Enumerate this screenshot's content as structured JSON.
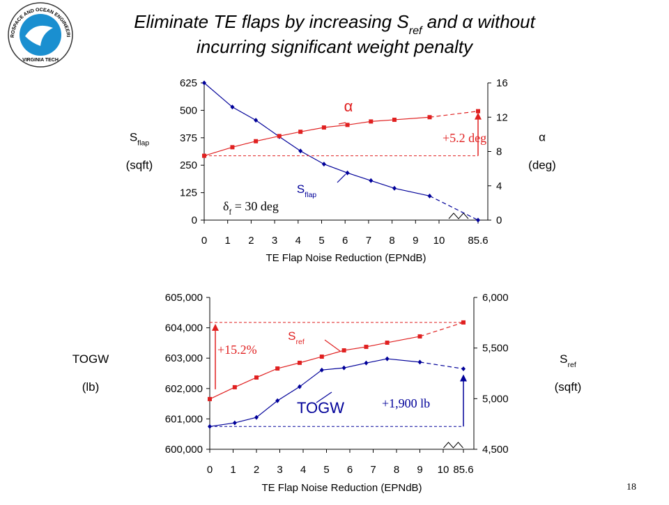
{
  "slide": {
    "title_lines": [
      [
        {
          "text": "Eliminate TE flaps by increasing S"
        },
        {
          "text": "ref",
          "sub": true
        },
        {
          "text": " and "
        },
        {
          "text": "α"
        },
        {
          "text": " without"
        }
      ],
      [
        {
          "text": "incurring significant weight penalty"
        }
      ]
    ],
    "logo_text": [
      "AEROSPACE AND OCEAN ENGINEERING",
      "VIRGINIA TECH"
    ],
    "page_number": "18"
  },
  "chart_data": [
    {
      "type": "line",
      "x_label": "TE Flap Noise Reduction (EPNdB)",
      "y_label": {
        "text": "S",
        "sub": "flap",
        "unit": "(sqft)"
      },
      "y2_label": {
        "text": "α",
        "unit": "(deg)"
      },
      "xticks": [
        0,
        1,
        2,
        3,
        4,
        5,
        6,
        7,
        8,
        9,
        10,
        85.6
      ],
      "ylim": [
        0,
        625
      ],
      "yticks": [
        0,
        125,
        250,
        375,
        500,
        625
      ],
      "y2lim": [
        0,
        16
      ],
      "y2ticks": [
        0,
        4,
        8,
        12,
        16
      ],
      "axis_break": true,
      "series": [
        {
          "name": "S",
          "name_sub": "flap",
          "color": "#000099",
          "x": [
            0,
            1.2,
            2.2,
            3.2,
            4.1,
            5.1,
            6.1,
            7.1,
            8.1,
            9.6,
            85.6
          ],
          "values": [
            625,
            515,
            455,
            380,
            315,
            255,
            215,
            180,
            145,
            110,
            0
          ]
        },
        {
          "name": "α",
          "axis": "y2",
          "color": "#e02020",
          "x": [
            0,
            1.2,
            2.2,
            3.2,
            4.1,
            5.1,
            6.1,
            7.1,
            8.1,
            9.6,
            85.6
          ],
          "values": [
            7.5,
            8.5,
            9.2,
            9.8,
            10.3,
            10.8,
            11.1,
            11.5,
            11.7,
            12.0,
            12.7
          ]
        }
      ],
      "annotations": [
        {
          "parts": [
            {
              "text": "+5.2 deg"
            }
          ],
          "color": "#e02020"
        },
        {
          "parts": [
            {
              "text": "δ"
            },
            {
              "text": "f",
              "sub": true
            },
            {
              "text": " = 30 deg"
            }
          ],
          "color": "#000000"
        }
      ]
    },
    {
      "type": "line",
      "x_label": "TE Flap Noise Reduction (EPNdB)",
      "y_label": {
        "text": "TOGW",
        "unit": "(lb)"
      },
      "y2_label": {
        "text": "S",
        "sub": "ref",
        "unit": "(sqft)"
      },
      "xticks": [
        0,
        1,
        2,
        3,
        4,
        5,
        6,
        7,
        8,
        9,
        10,
        85.6
      ],
      "ylim": [
        600000,
        605000
      ],
      "yticks": [
        {
          "value": 600000,
          "label": "600,000"
        },
        {
          "value": 601000,
          "label": "601,000"
        },
        {
          "value": 602000,
          "label": "602,000"
        },
        {
          "value": 603000,
          "label": "603,000"
        },
        {
          "value": 604000,
          "label": "604,000"
        },
        {
          "value": 605000,
          "label": "605,000"
        }
      ],
      "y2lim": [
        4500,
        6000
      ],
      "y2ticks": [
        {
          "value": 4500,
          "label": "4,500"
        },
        {
          "value": 5000,
          "label": "5,000"
        },
        {
          "value": 5500,
          "label": "5,500"
        },
        {
          "value": 6000,
          "label": "6,000"
        }
      ],
      "axis_break": true,
      "series": [
        {
          "name": "TOGW",
          "color": "#000099",
          "x": [
            0,
            1.07,
            2.0,
            2.9,
            3.85,
            4.8,
            5.75,
            6.7,
            7.6,
            9.0,
            85.6
          ],
          "values": [
            600750,
            600870,
            601050,
            601600,
            602060,
            602610,
            602680,
            602840,
            602980,
            602870,
            602650
          ]
        },
        {
          "name": "S",
          "name_sub": "ref",
          "axis": "y2",
          "color": "#e02020",
          "x": [
            0,
            1.07,
            2.0,
            2.9,
            3.85,
            4.8,
            5.75,
            6.7,
            7.6,
            9.0,
            85.6
          ],
          "values": [
            4996,
            5113,
            5209,
            5298,
            5354,
            5415,
            5477,
            5512,
            5553,
            5615,
            5753
          ]
        }
      ],
      "annotations": [
        {
          "parts": [
            {
              "text": "+15.2%"
            }
          ],
          "color": "#e02020"
        },
        {
          "parts": [
            {
              "text": "+1,900 lb"
            }
          ],
          "color": "#000099"
        }
      ]
    }
  ]
}
